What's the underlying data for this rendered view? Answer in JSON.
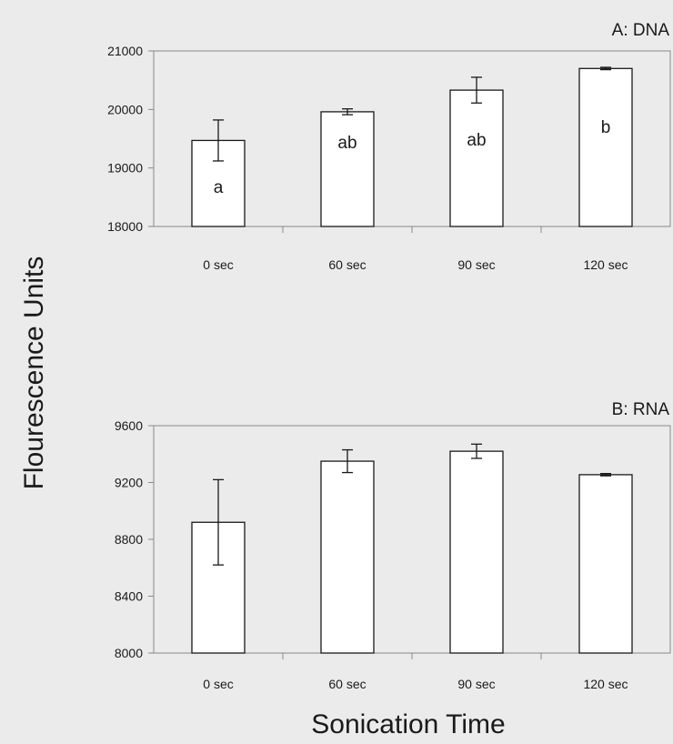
{
  "figure": {
    "ylabel": "Flourescence Units",
    "xlabel": "Sonication Time"
  },
  "colors": {
    "background": "#ebebeb",
    "plot_area": "#ebebeb",
    "bar_fill": "#ffffff",
    "stroke": "#1a1a1a",
    "axis": "#8a8a8a"
  },
  "chart_data": [
    {
      "type": "bar",
      "title": "A: DNA",
      "categories": [
        "0 sec",
        "60 sec",
        "90 sec",
        "120 sec"
      ],
      "values": [
        19470,
        19960,
        20330,
        20700
      ],
      "error": [
        350,
        50,
        220,
        20
      ],
      "annotations": [
        "a",
        "ab",
        "ab",
        "b"
      ],
      "ylim": [
        18000,
        21000
      ],
      "yticks": [
        18000,
        19000,
        20000,
        21000
      ],
      "ytick_labels": [
        "18000",
        "19000",
        "20000",
        "21000"
      ],
      "grid": false
    },
    {
      "type": "bar",
      "title": "B: RNA",
      "categories": [
        "0 sec",
        "60 sec",
        "90 sec",
        "120 sec"
      ],
      "values": [
        8920,
        9350,
        9420,
        9255
      ],
      "error": [
        300,
        80,
        50,
        8
      ],
      "annotations": [
        "",
        "",
        "",
        ""
      ],
      "ylim": [
        8000,
        9600
      ],
      "yticks": [
        8000,
        8400,
        8800,
        9200,
        9600
      ],
      "ytick_labels": [
        "8000",
        "8400",
        "8800",
        "9200",
        "9600"
      ],
      "grid": false
    }
  ]
}
